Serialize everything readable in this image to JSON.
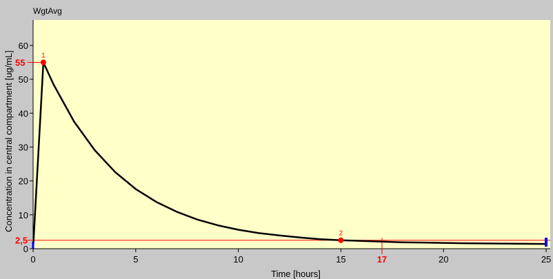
{
  "panel": {
    "title": "WgtAvg"
  },
  "colors": {
    "plot_bg": "#ffffc8",
    "frame_bg": "#c8c8c8",
    "curve": "#000000",
    "marker": "#ff0000",
    "cursor": "#0000ff"
  },
  "chart_data": {
    "type": "line",
    "xlabel": "Time [hours]",
    "ylabel": "Concentration in central compartment [ug/mL]",
    "xlim": [
      0,
      25.2
    ],
    "ylim": [
      0,
      67.5
    ],
    "x_ticks": [
      0,
      5,
      10,
      15,
      20,
      25
    ],
    "y_ticks": [
      0,
      10,
      20,
      30,
      40,
      50,
      60
    ],
    "grid": false,
    "series": [
      {
        "x": [
          0,
          0.5,
          1,
          2,
          3,
          4,
          5,
          6,
          7,
          8,
          9,
          10,
          11,
          12,
          13,
          14,
          15,
          16,
          17,
          18,
          19,
          20,
          21,
          22,
          23,
          24,
          25
        ],
        "y": [
          0,
          55,
          48.4,
          37.5,
          29.1,
          22.6,
          17.6,
          13.8,
          10.9,
          8.6,
          6.9,
          5.6,
          4.6,
          3.9,
          3.3,
          2.8,
          2.5,
          2.3,
          2.1,
          1.9,
          1.8,
          1.7,
          1.6,
          1.55,
          1.5,
          1.45,
          1.4
        ]
      }
    ],
    "markers": [
      {
        "label": "1",
        "x": 0.5,
        "y": 55,
        "y_label": "55"
      },
      {
        "label": "2",
        "x": 15,
        "y": 2.5,
        "y_label": "2,5"
      }
    ],
    "x_marker": {
      "x": 17,
      "label": "17"
    },
    "cursor_x": 25
  }
}
